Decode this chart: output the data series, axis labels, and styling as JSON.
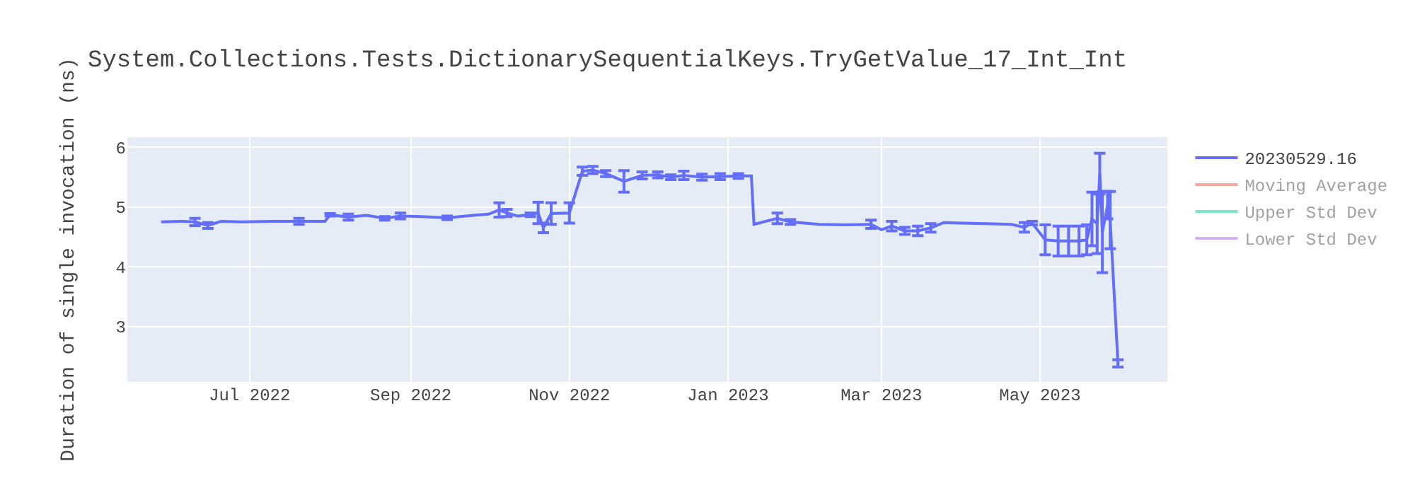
{
  "chart_data": {
    "type": "line",
    "title": "System.Collections.Tests.DictionarySequentialKeys.TryGetValue_17_Int_Int",
    "ylabel": "Duration of single invocation (ns)",
    "x": [
      "2022-05-28",
      "2022-06-05",
      "2022-06-10",
      "2022-06-15",
      "2022-06-20",
      "2022-06-28",
      "2022-07-10",
      "2022-07-20",
      "2022-07-30",
      "2022-08-01",
      "2022-08-08",
      "2022-08-15",
      "2022-08-22",
      "2022-08-28",
      "2022-09-05",
      "2022-09-15",
      "2022-09-25",
      "2022-10-01",
      "2022-10-05",
      "2022-10-08",
      "2022-10-12",
      "2022-10-17",
      "2022-10-20",
      "2022-10-22",
      "2022-10-25",
      "2022-11-01",
      "2022-11-06",
      "2022-11-10",
      "2022-11-15",
      "2022-11-22",
      "2022-11-29",
      "2022-12-05",
      "2022-12-10",
      "2022-12-15",
      "2022-12-22",
      "2022-12-29",
      "2023-01-05",
      "2023-01-10",
      "2023-01-11",
      "2023-01-20",
      "2023-01-25",
      "2023-02-05",
      "2023-02-15",
      "2023-02-25",
      "2023-03-01",
      "2023-03-05",
      "2023-03-10",
      "2023-03-15",
      "2023-03-20",
      "2023-03-25",
      "2023-04-01",
      "2023-04-10",
      "2023-04-20",
      "2023-04-25",
      "2023-04-28",
      "2023-05-03",
      "2023-05-08",
      "2023-05-12",
      "2023-05-16",
      "2023-05-19",
      "2023-05-21",
      "2023-05-23",
      "2023-05-24",
      "2023-05-25",
      "2023-05-27",
      "2023-05-28",
      "2023-05-31"
    ],
    "series": [
      {
        "name": "20230529.16",
        "color": "#636efa",
        "values": [
          4.75,
          4.76,
          4.75,
          4.69,
          4.76,
          4.75,
          4.76,
          4.76,
          4.76,
          4.87,
          4.83,
          4.86,
          4.81,
          4.85,
          4.84,
          4.82,
          4.86,
          4.88,
          4.95,
          4.9,
          4.85,
          4.87,
          4.9,
          4.65,
          4.89,
          4.9,
          5.6,
          5.62,
          5.56,
          5.43,
          5.53,
          5.54,
          5.5,
          5.53,
          5.5,
          5.51,
          5.52,
          5.52,
          4.71,
          4.81,
          4.75,
          4.71,
          4.7,
          4.71,
          4.62,
          4.68,
          4.6,
          4.6,
          4.65,
          4.74,
          4.73,
          4.72,
          4.71,
          4.66,
          4.73,
          4.45,
          4.43,
          4.43,
          4.43,
          4.45,
          4.8,
          4.72,
          5.56,
          4.58,
          5.03,
          4.78,
          2.38
        ],
        "errors": [
          null,
          null,
          0.06,
          0.05,
          null,
          null,
          null,
          0.05,
          null,
          0.02,
          0.05,
          null,
          0.03,
          0.05,
          null,
          0.03,
          null,
          null,
          0.12,
          0.06,
          null,
          0.03,
          0.18,
          0.08,
          0.18,
          0.17,
          0.07,
          0.06,
          0.05,
          0.18,
          0.06,
          0.05,
          0.04,
          0.07,
          0.05,
          0.05,
          0.04,
          null,
          null,
          0.09,
          0.04,
          null,
          null,
          0.07,
          null,
          0.08,
          0.06,
          0.08,
          0.07,
          null,
          null,
          null,
          null,
          0.08,
          0.03,
          0.25,
          0.25,
          0.25,
          0.25,
          0.25,
          0.45,
          0.5,
          0.34,
          0.68,
          0.23,
          0.48,
          0.06
        ]
      },
      {
        "name": "Moving Average",
        "color": "#ef553b",
        "values": [
          null,
          null,
          null,
          null,
          null,
          null,
          null,
          null,
          null,
          null,
          null,
          null,
          null,
          null,
          null,
          null,
          null,
          null,
          null,
          null,
          null,
          null,
          null,
          null,
          null,
          null,
          null,
          null,
          null,
          null,
          null,
          null,
          null,
          null,
          null,
          null,
          null,
          null,
          null,
          null,
          null,
          null,
          null,
          null,
          null,
          null,
          null,
          null,
          null,
          null,
          null,
          null,
          null,
          null,
          null,
          null,
          null,
          null,
          null,
          null,
          null,
          null,
          null,
          null,
          null,
          null,
          null
        ]
      },
      {
        "name": "Upper Std Dev",
        "color": "#00cc96",
        "values": [
          null,
          null,
          null,
          null,
          null,
          null,
          null,
          null,
          null,
          null,
          null,
          null,
          null,
          null,
          null,
          null,
          null,
          null,
          null,
          null,
          null,
          null,
          null,
          null,
          null,
          null,
          null,
          null,
          null,
          null,
          null,
          null,
          null,
          null,
          null,
          null,
          null,
          null,
          null,
          null,
          null,
          null,
          null,
          null,
          null,
          null,
          null,
          null,
          null,
          null,
          null,
          null,
          null,
          null,
          null,
          null,
          null,
          null,
          null,
          null,
          null,
          null,
          null,
          null,
          null,
          null,
          null
        ]
      },
      {
        "name": "Lower Std Dev",
        "color": "#ab63fa",
        "values": [
          null,
          null,
          null,
          null,
          null,
          null,
          null,
          null,
          null,
          null,
          null,
          null,
          null,
          null,
          null,
          null,
          null,
          null,
          null,
          null,
          null,
          null,
          null,
          null,
          null,
          null,
          null,
          null,
          null,
          null,
          null,
          null,
          null,
          null,
          null,
          null,
          null,
          null,
          null,
          null,
          null,
          null,
          null,
          null,
          null,
          null,
          null,
          null,
          null,
          null,
          null,
          null,
          null,
          null,
          null,
          null,
          null,
          null,
          null,
          null,
          null,
          null,
          null,
          null,
          null,
          null,
          null
        ]
      }
    ],
    "xlim": [
      "2022-05-15",
      "2023-06-19"
    ],
    "xticks": [
      {
        "value": "2022-07-01",
        "label": "Jul 2022"
      },
      {
        "value": "2022-09-01",
        "label": "Sep 2022"
      },
      {
        "value": "2022-11-01",
        "label": "Nov 2022"
      },
      {
        "value": "2023-01-01",
        "label": "Jan 2023"
      },
      {
        "value": "2023-03-01",
        "label": "Mar 2023"
      },
      {
        "value": "2023-05-01",
        "label": "May 2023"
      }
    ],
    "ylim": [
      2.07,
      6.17
    ],
    "yticks": [
      3,
      4,
      5,
      6
    ],
    "grid": true,
    "legend": "top right",
    "marker": "none",
    "line_style": "solid"
  }
}
